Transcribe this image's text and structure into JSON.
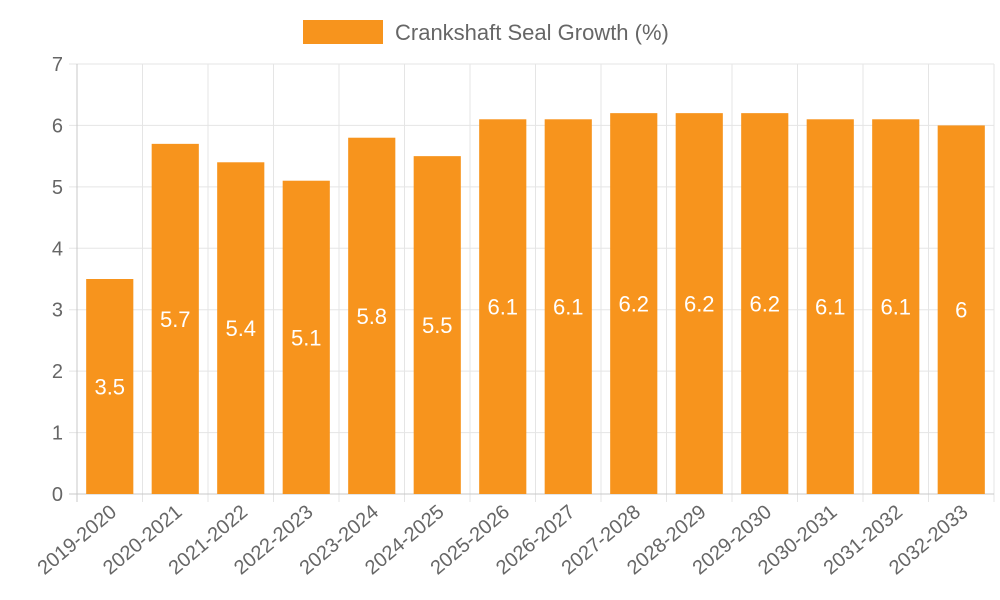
{
  "chart_data": {
    "type": "bar",
    "categories": [
      "2019-2020",
      "2020-2021",
      "2021-2022",
      "2022-2023",
      "2023-2024",
      "2024-2025",
      "2025-2026",
      "2026-2027",
      "2027-2028",
      "2028-2029",
      "2029-2030",
      "2030-2031",
      "2031-2032",
      "2032-2033"
    ],
    "series": [
      {
        "name": "Crankshaft Seal Growth (%)",
        "values": [
          3.5,
          5.7,
          5.4,
          5.1,
          5.8,
          5.5,
          6.1,
          6.1,
          6.2,
          6.2,
          6.2,
          6.1,
          6.1,
          6
        ]
      }
    ],
    "data_labels": [
      "3.5",
      "5.7",
      "5.4",
      "5.1",
      "5.8",
      "5.5",
      "6.1",
      "6.1",
      "6.2",
      "6.2",
      "6.2",
      "6.1",
      "6.1",
      "6"
    ],
    "ylim": [
      0,
      7
    ],
    "y_ticks": [
      0,
      1,
      2,
      3,
      4,
      5,
      6,
      7
    ],
    "grid": true,
    "legend_position": "top-center",
    "colors": {
      "bar": "#f7941d",
      "grid": "#e5e5e5",
      "axis": "#c8c8c8",
      "tick_text": "#666666",
      "data_label": "#ffffff"
    }
  }
}
